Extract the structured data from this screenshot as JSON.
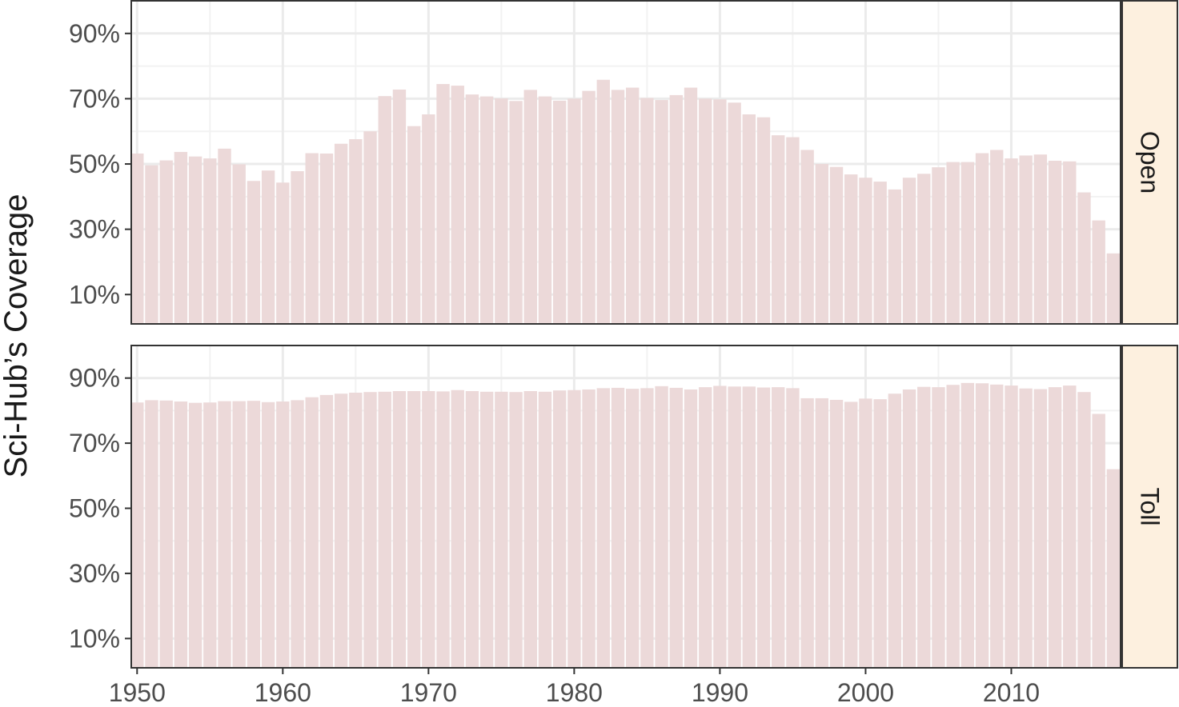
{
  "chart_data": {
    "type": "bar",
    "ylabel": "Sci-Hub’s Coverage",
    "xlabel": "",
    "x": [
      1950,
      1951,
      1952,
      1953,
      1954,
      1955,
      1956,
      1957,
      1958,
      1959,
      1960,
      1961,
      1962,
      1963,
      1964,
      1965,
      1966,
      1967,
      1968,
      1969,
      1970,
      1971,
      1972,
      1973,
      1974,
      1975,
      1976,
      1977,
      1978,
      1979,
      1980,
      1981,
      1982,
      1983,
      1984,
      1985,
      1986,
      1987,
      1988,
      1989,
      1990,
      1991,
      1992,
      1993,
      1994,
      1995,
      1996,
      1997,
      1998,
      1999,
      2000,
      2001,
      2002,
      2003,
      2004,
      2005,
      2006,
      2007,
      2008,
      2009,
      2010,
      2011,
      2012,
      2013,
      2014,
      2015,
      2016,
      2017
    ],
    "xlim": [
      1949.6,
      2017.5
    ],
    "x_ticks": [
      1950,
      1960,
      1970,
      1980,
      1990,
      2000,
      2010
    ],
    "x_tick_labels": [
      "1950",
      "1960",
      "1970",
      "1980",
      "1990",
      "2000",
      "2010"
    ],
    "ylim": [
      0.01,
      1.0
    ],
    "y_ticks": [
      0.1,
      0.3,
      0.5,
      0.7,
      0.9
    ],
    "y_tick_labels": [
      "10%",
      "30%",
      "50%",
      "70%",
      "90%"
    ],
    "grid": true,
    "bar_color": "#ecd9d9",
    "strip_color": "#fdf0df",
    "panels": [
      {
        "strip_label": "Open",
        "values": [
          0.532,
          0.496,
          0.511,
          0.537,
          0.523,
          0.517,
          0.547,
          0.499,
          0.448,
          0.48,
          0.443,
          0.478,
          0.533,
          0.532,
          0.562,
          0.576,
          0.6,
          0.708,
          0.728,
          0.616,
          0.652,
          0.745,
          0.74,
          0.713,
          0.707,
          0.701,
          0.693,
          0.727,
          0.707,
          0.694,
          0.7,
          0.724,
          0.758,
          0.727,
          0.734,
          0.702,
          0.696,
          0.711,
          0.734,
          0.7,
          0.698,
          0.688,
          0.652,
          0.643,
          0.588,
          0.582,
          0.543,
          0.5,
          0.491,
          0.468,
          0.458,
          0.446,
          0.422,
          0.458,
          0.47,
          0.49,
          0.506,
          0.506,
          0.533,
          0.543,
          0.517,
          0.526,
          0.529,
          0.51,
          0.508,
          0.413,
          0.327,
          0.226
        ]
      },
      {
        "strip_label": "Toll",
        "values": [
          0.825,
          0.832,
          0.831,
          0.828,
          0.824,
          0.825,
          0.829,
          0.829,
          0.83,
          0.826,
          0.828,
          0.832,
          0.841,
          0.848,
          0.852,
          0.855,
          0.857,
          0.858,
          0.86,
          0.86,
          0.86,
          0.859,
          0.863,
          0.86,
          0.858,
          0.858,
          0.857,
          0.86,
          0.858,
          0.862,
          0.863,
          0.865,
          0.869,
          0.87,
          0.867,
          0.869,
          0.875,
          0.87,
          0.865,
          0.872,
          0.876,
          0.874,
          0.874,
          0.871,
          0.872,
          0.869,
          0.838,
          0.838,
          0.833,
          0.827,
          0.837,
          0.835,
          0.852,
          0.865,
          0.873,
          0.872,
          0.879,
          0.885,
          0.884,
          0.88,
          0.877,
          0.868,
          0.866,
          0.872,
          0.877,
          0.857,
          0.79,
          0.62
        ]
      }
    ]
  }
}
